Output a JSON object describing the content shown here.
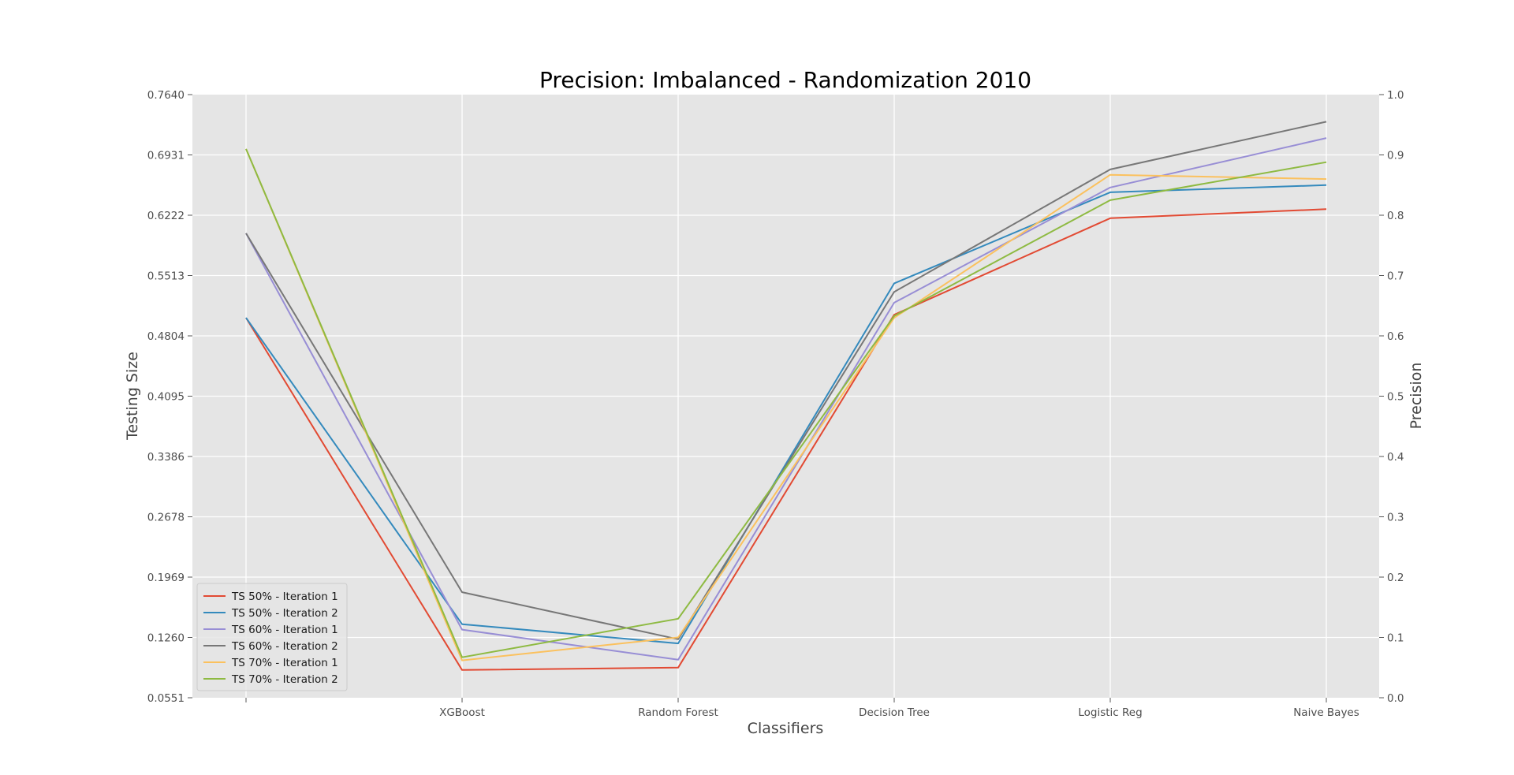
{
  "chart_data": {
    "type": "line",
    "title": "Precision: Imbalanced - Randomization 2010",
    "xlabel": "Classifiers",
    "ylabel_left": "Testing Size",
    "ylabel_right": "Precision",
    "categories": [
      "",
      "XGBoost",
      "Random Forest",
      "Decision Tree",
      "Logistic Reg",
      "Naive Bayes"
    ],
    "left_ticks": [
      "0.0551",
      "0.1260",
      "0.1969",
      "0.2678",
      "0.3386",
      "0.4095",
      "0.4804",
      "0.5513",
      "0.6222",
      "0.6931",
      "0.7640"
    ],
    "right_ticks": [
      "0.0",
      "0.1",
      "0.2",
      "0.3",
      "0.4",
      "0.5",
      "0.6",
      "0.7",
      "0.8",
      "0.9",
      "1.0"
    ],
    "ylim_left": [
      0.0551,
      0.764
    ],
    "ylim_right": [
      0.0,
      1.0
    ],
    "grid": true,
    "legend_position": "lower-left",
    "series": [
      {
        "name": "TS 50% - Iteration 1",
        "color": "#E24A33",
        "values": [
          0.63,
          0.046,
          0.05,
          0.635,
          0.795,
          0.81
        ]
      },
      {
        "name": "TS 50% - Iteration 2",
        "color": "#348ABD",
        "values": [
          0.63,
          0.122,
          0.09,
          0.687,
          0.838,
          0.85
        ]
      },
      {
        "name": "TS 60% - Iteration 1",
        "color": "#988ED5",
        "values": [
          0.77,
          0.113,
          0.063,
          0.655,
          0.846,
          0.928
        ]
      },
      {
        "name": "TS 60% - Iteration 2",
        "color": "#777777",
        "values": [
          0.77,
          0.175,
          0.097,
          0.673,
          0.876,
          0.955
        ]
      },
      {
        "name": "TS 70% - Iteration 1",
        "color": "#FBC15E",
        "values": [
          0.91,
          0.062,
          0.1,
          0.63,
          0.867,
          0.86
        ]
      },
      {
        "name": "TS 70% - Iteration 2",
        "color": "#8EBA42",
        "values": [
          0.91,
          0.067,
          0.131,
          0.633,
          0.825,
          0.888
        ]
      }
    ]
  }
}
